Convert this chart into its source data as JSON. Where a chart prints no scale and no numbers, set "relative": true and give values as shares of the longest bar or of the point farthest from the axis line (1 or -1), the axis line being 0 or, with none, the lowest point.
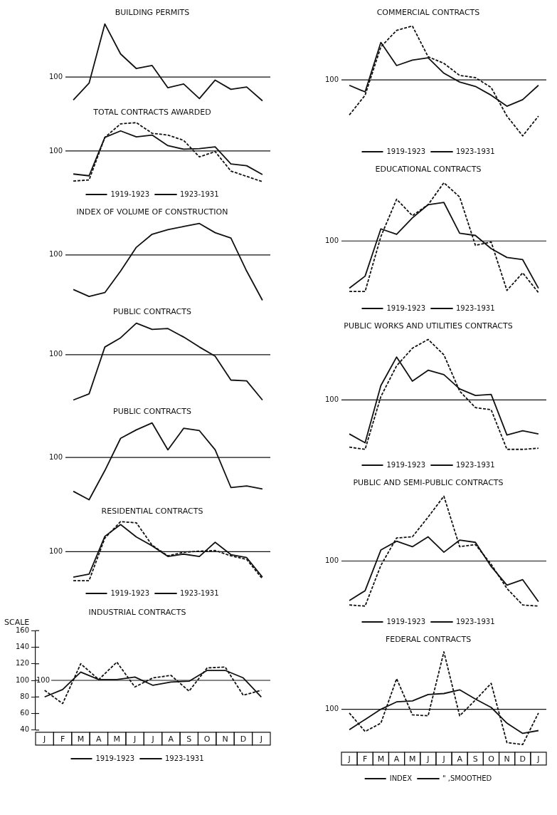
{
  "chart_data": [
    {
      "type": "line",
      "title": "BUILDING PERMITS",
      "relative": true,
      "categories": [
        null,
        null,
        null,
        null,
        null,
        null,
        null,
        null,
        null,
        null,
        null,
        null,
        null
      ],
      "series": [
        {
          "color": "#111111",
          "line_style": "solid",
          "values": [
            0.01,
            0.23,
            1,
            0.61,
            0.42,
            0.46,
            0.17,
            0.22,
            0.03,
            0.27,
            0.15,
            0.18,
            0
          ]
        }
      ],
      "ref_lines": [
        {
          "axis": "y",
          "value": 0.31
        }
      ],
      "annotations": [
        "100"
      ],
      "tick_labels": false,
      "marker": "none"
    },
    {
      "type": "line",
      "title": "TOTAL CONTRACTS AWARDED",
      "relative": true,
      "categories": [
        null,
        null,
        null,
        null,
        null,
        null,
        null,
        null,
        null,
        null,
        null,
        null,
        null
      ],
      "series": [
        {
          "name": "1919-1923",
          "color": "#111111",
          "line_style": "dashed",
          "values": [
            0.01,
            0.03,
            0.75,
            0.98,
            1,
            0.82,
            0.79,
            0.7,
            0.42,
            0.51,
            0.18,
            0.09,
            0
          ]
        },
        {
          "name": "1923-1931",
          "color": "#111111",
          "line_style": "solid",
          "values": [
            0.13,
            0.1,
            0.75,
            0.86,
            0.76,
            0.79,
            0.61,
            0.55,
            0.56,
            0.59,
            0.3,
            0.27,
            0.12
          ]
        }
      ],
      "ref_lines": [
        {
          "axis": "y",
          "value": 0.52
        }
      ],
      "annotations": [
        "100"
      ],
      "tick_labels": false,
      "marker": "none",
      "legend": "bottom"
    },
    {
      "type": "line",
      "title": "INDEX OF VOLUME OF CONSTRUCTION",
      "relative": true,
      "categories": [
        null,
        null,
        null,
        null,
        null,
        null,
        null,
        null,
        null,
        null,
        null,
        null,
        null
      ],
      "series": [
        {
          "color": "#111111",
          "line_style": "solid",
          "values": [
            0.14,
            0.05,
            0.1,
            0.38,
            0.69,
            0.86,
            0.92,
            0.96,
            1,
            0.88,
            0.81,
            0.38,
            0
          ]
        }
      ],
      "ref_lines": [
        {
          "axis": "y",
          "value": 0.59
        }
      ],
      "annotations": [
        "100"
      ],
      "tick_labels": false,
      "marker": "none"
    },
    {
      "type": "line",
      "title": "PUBLIC CONTRACTS",
      "relative": true,
      "categories": [
        null,
        null,
        null,
        null,
        null,
        null,
        null,
        null,
        null,
        null,
        null,
        null,
        null
      ],
      "series": [
        {
          "color": "#111111",
          "line_style": "solid",
          "values": [
            0,
            0.08,
            0.69,
            0.81,
            1,
            0.92,
            0.93,
            0.82,
            0.69,
            0.57,
            0.26,
            0.25,
            0
          ]
        }
      ],
      "ref_lines": [
        {
          "axis": "y",
          "value": 0.59
        }
      ],
      "annotations": [
        "100"
      ],
      "tick_labels": false,
      "marker": "none"
    },
    {
      "type": "line",
      "title": "PUBLIC CONTRACTS",
      "relative": true,
      "categories": [
        null,
        null,
        null,
        null,
        null,
        null,
        null,
        null,
        null,
        null,
        null,
        null,
        null
      ],
      "series": [
        {
          "color": "#111111",
          "line_style": "solid",
          "values": [
            0.11,
            0,
            0.38,
            0.8,
            0.91,
            1,
            0.65,
            0.93,
            0.9,
            0.65,
            0.16,
            0.18,
            0.14
          ]
        }
      ],
      "ref_lines": [
        {
          "axis": "y",
          "value": 0.55
        }
      ],
      "annotations": [
        "100"
      ],
      "tick_labels": false,
      "marker": "none"
    },
    {
      "type": "line",
      "title": "RESIDENTIAL CONTRACTS",
      "relative": true,
      "categories": [
        null,
        null,
        null,
        null,
        null,
        null,
        null,
        null,
        null,
        null,
        null,
        null,
        null
      ],
      "series": [
        {
          "name": "1919-1923",
          "color": "#111111",
          "line_style": "dashed",
          "values": [
            0,
            0,
            0.72,
            1,
            0.98,
            0.6,
            0.42,
            0.48,
            0.5,
            0.51,
            0.42,
            0.36,
            0.03
          ]
        },
        {
          "name": "1923-1931",
          "color": "#111111",
          "line_style": "solid",
          "values": [
            0.06,
            0.11,
            0.75,
            0.95,
            0.74,
            0.59,
            0.41,
            0.45,
            0.41,
            0.65,
            0.44,
            0.39,
            0.06
          ]
        }
      ],
      "ref_lines": [
        {
          "axis": "y",
          "value": 0.49
        }
      ],
      "annotations": [
        "100"
      ],
      "tick_labels": false,
      "marker": "none",
      "legend": "bottom"
    },
    {
      "type": "line",
      "title": "INDUSTRIAL CONTRACTS",
      "ylabel": "SCALE",
      "categories": [
        "J",
        "F",
        "M",
        "A",
        "M",
        "J",
        "J",
        "A",
        "S",
        "O",
        "N",
        "D",
        "J"
      ],
      "series": [
        {
          "name": "1919-1923",
          "color": "#111111",
          "line_style": "dashed",
          "values": [
            88,
            72,
            120,
            101,
            122,
            92,
            103,
            106,
            87,
            115,
            116,
            82,
            88
          ]
        },
        {
          "name": "1923-1931",
          "color": "#111111",
          "line_style": "solid",
          "values": [
            80,
            89,
            110,
            101,
            101,
            104,
            94,
            98,
            99,
            112,
            112,
            103,
            80
          ]
        }
      ],
      "ylim": [
        40,
        160
      ],
      "yticks": [
        40,
        60,
        80,
        100,
        120,
        140,
        160
      ],
      "ref_lines": [
        {
          "axis": "y",
          "value": 100,
          "label": "100"
        }
      ],
      "marker": "none",
      "legend": "bottom"
    },
    {
      "type": "line",
      "title": "COMMERCIAL CONTRACTS",
      "relative": true,
      "categories": [
        null,
        null,
        null,
        null,
        null,
        null,
        null,
        null,
        null,
        null,
        null,
        null,
        null
      ],
      "series": [
        {
          "name": "1919-1923",
          "color": "#111111",
          "line_style": "dashed",
          "values": [
            0.19,
            0.37,
            0.81,
            0.96,
            1,
            0.72,
            0.66,
            0.55,
            0.53,
            0.44,
            0.18,
            0,
            0.18
          ]
        },
        {
          "name": "1923-1931",
          "color": "#111111",
          "line_style": "solid",
          "values": [
            0.46,
            0.4,
            0.85,
            0.64,
            0.69,
            0.71,
            0.57,
            0.49,
            0.45,
            0.37,
            0.27,
            0.33,
            0.46
          ]
        }
      ],
      "ref_lines": [
        {
          "axis": "y",
          "value": 0.51
        }
      ],
      "annotations": [
        "100"
      ],
      "tick_labels": false,
      "marker": "none",
      "legend": "bottom"
    },
    {
      "type": "line",
      "title": "EDUCATIONAL CONTRACTS",
      "relative": true,
      "categories": [
        null,
        null,
        null,
        null,
        null,
        null,
        null,
        null,
        null,
        null,
        null,
        null,
        null
      ],
      "series": [
        {
          "name": "1919-1923",
          "color": "#111111",
          "line_style": "dashed",
          "values": [
            0.01,
            0.01,
            0.51,
            0.85,
            0.7,
            0.8,
            1,
            0.87,
            0.43,
            0.46,
            0.02,
            0.18,
            0
          ]
        },
        {
          "name": "1923-1931",
          "color": "#111111",
          "line_style": "solid",
          "values": [
            0.04,
            0.15,
            0.58,
            0.53,
            0.68,
            0.8,
            0.82,
            0.54,
            0.52,
            0.4,
            0.32,
            0.3,
            0.04
          ]
        }
      ],
      "ref_lines": [
        {
          "axis": "y",
          "value": 0.47
        }
      ],
      "annotations": [
        "100"
      ],
      "tick_labels": false,
      "marker": "none",
      "legend": "bottom"
    },
    {
      "type": "line",
      "title": "PUBLIC WORKS AND UTILITIES CONTRACTS",
      "relative": true,
      "categories": [
        null,
        null,
        null,
        null,
        null,
        null,
        null,
        null,
        null,
        null,
        null,
        null,
        null
      ],
      "series": [
        {
          "name": "1919-1923",
          "color": "#111111",
          "line_style": "dashed",
          "values": [
            0.02,
            0,
            0.48,
            0.76,
            0.92,
            1,
            0.86,
            0.53,
            0.38,
            0.36,
            0,
            0,
            0.01
          ]
        },
        {
          "name": "1923-1931",
          "color": "#111111",
          "line_style": "solid",
          "values": [
            0.14,
            0.06,
            0.58,
            0.84,
            0.62,
            0.72,
            0.68,
            0.55,
            0.49,
            0.5,
            0.13,
            0.17,
            0.14
          ]
        }
      ],
      "ref_lines": [
        {
          "axis": "y",
          "value": 0.45
        }
      ],
      "annotations": [
        "100"
      ],
      "tick_labels": false,
      "marker": "none",
      "legend": "bottom"
    },
    {
      "type": "line",
      "title": "PUBLIC AND SEMI-PUBLIC CONTRACTS",
      "relative": true,
      "categories": [
        null,
        null,
        null,
        null,
        null,
        null,
        null,
        null,
        null,
        null,
        null,
        null,
        null
      ],
      "series": [
        {
          "name": "1919-1923",
          "color": "#111111",
          "line_style": "dashed",
          "values": [
            0.01,
            0,
            0.37,
            0.62,
            0.63,
            0.81,
            1,
            0.54,
            0.56,
            0.38,
            0.16,
            0.01,
            0
          ]
        },
        {
          "name": "1923-1931",
          "color": "#111111",
          "line_style": "solid",
          "values": [
            0.05,
            0.14,
            0.51,
            0.59,
            0.54,
            0.63,
            0.49,
            0.6,
            0.58,
            0.36,
            0.19,
            0.24,
            0.04
          ]
        }
      ],
      "ref_lines": [
        {
          "axis": "y",
          "value": 0.41
        }
      ],
      "annotations": [
        "100"
      ],
      "tick_labels": false,
      "marker": "none",
      "legend": "bottom"
    },
    {
      "type": "line",
      "title": "FEDERAL CONTRACTS",
      "relative": true,
      "categories": [
        "J",
        "F",
        "M",
        "A",
        "M",
        "J",
        "J",
        "A",
        "S",
        "O",
        "N",
        "D",
        "J"
      ],
      "series": [
        {
          "name": "INDEX",
          "color": "#111111",
          "line_style": "dashed",
          "values": [
            0.34,
            0.14,
            0.23,
            0.71,
            0.32,
            0.31,
            1,
            0.31,
            0.48,
            0.66,
            0.02,
            0,
            0.34
          ]
        },
        {
          "name": "\" ,SMOOTHED",
          "color": "#111111",
          "line_style": "solid",
          "values": [
            0.16,
            0.27,
            0.38,
            0.46,
            0.47,
            0.54,
            0.55,
            0.59,
            0.49,
            0.4,
            0.23,
            0.12,
            0.15
          ]
        }
      ],
      "ref_lines": [
        {
          "axis": "y",
          "value": 0.38
        }
      ],
      "annotations": [
        "100"
      ],
      "tick_labels": "x",
      "marker": "none",
      "legend": "bottom"
    }
  ]
}
